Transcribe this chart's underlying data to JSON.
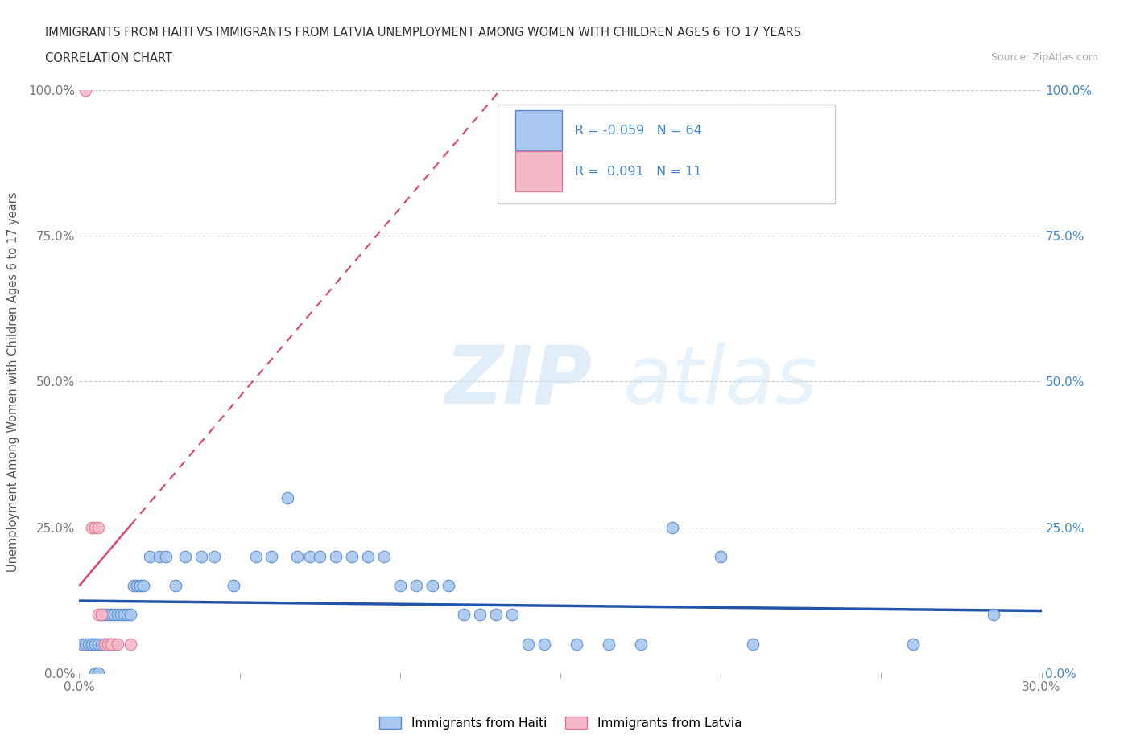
{
  "title_line1": "IMMIGRANTS FROM HAITI VS IMMIGRANTS FROM LATVIA UNEMPLOYMENT AMONG WOMEN WITH CHILDREN AGES 6 TO 17 YEARS",
  "title_line2": "CORRELATION CHART",
  "source_text": "Source: ZipAtlas.com",
  "xlabel": "Immigrants from Haiti",
  "xlabel2": "Immigrants from Latvia",
  "ylabel": "Unemployment Among Women with Children Ages 6 to 17 years",
  "xlim": [
    0.0,
    0.3
  ],
  "ylim": [
    0.0,
    1.0
  ],
  "xticks": [
    0.0,
    0.05,
    0.1,
    0.15,
    0.2,
    0.25,
    0.3
  ],
  "yticks": [
    0.0,
    0.25,
    0.5,
    0.75,
    1.0
  ],
  "haiti_color": "#a8c8f0",
  "haiti_edge_color": "#5588cc",
  "latvia_color": "#f5b8c8",
  "latvia_edge_color": "#dd7799",
  "haiti_R": -0.059,
  "haiti_N": 64,
  "latvia_R": 0.091,
  "latvia_N": 11,
  "trend_haiti_color": "#2255aa",
  "trend_latvia_color": "#dd4466",
  "background_color": "#ffffff",
  "haiti_scatter_x": [
    0.001,
    0.002,
    0.003,
    0.004,
    0.004,
    0.005,
    0.005,
    0.006,
    0.006,
    0.007,
    0.007,
    0.008,
    0.008,
    0.009,
    0.009,
    0.01,
    0.01,
    0.011,
    0.011,
    0.012,
    0.013,
    0.014,
    0.015,
    0.016,
    0.017,
    0.018,
    0.019,
    0.02,
    0.022,
    0.025,
    0.027,
    0.03,
    0.033,
    0.038,
    0.042,
    0.048,
    0.055,
    0.06,
    0.065,
    0.068,
    0.072,
    0.075,
    0.08,
    0.085,
    0.09,
    0.095,
    0.1,
    0.105,
    0.11,
    0.115,
    0.12,
    0.125,
    0.13,
    0.135,
    0.14,
    0.145,
    0.155,
    0.165,
    0.175,
    0.185,
    0.2,
    0.21,
    0.26,
    0.285
  ],
  "haiti_scatter_y": [
    0.05,
    0.05,
    0.05,
    0.05,
    0.05,
    0.05,
    0.0,
    0.05,
    0.0,
    0.05,
    0.1,
    0.05,
    0.1,
    0.05,
    0.1,
    0.05,
    0.1,
    0.05,
    0.1,
    0.1,
    0.1,
    0.1,
    0.1,
    0.1,
    0.15,
    0.15,
    0.15,
    0.15,
    0.2,
    0.2,
    0.2,
    0.15,
    0.2,
    0.2,
    0.2,
    0.15,
    0.2,
    0.2,
    0.3,
    0.2,
    0.2,
    0.2,
    0.2,
    0.2,
    0.2,
    0.2,
    0.15,
    0.15,
    0.15,
    0.15,
    0.1,
    0.1,
    0.1,
    0.1,
    0.05,
    0.05,
    0.05,
    0.05,
    0.05,
    0.25,
    0.2,
    0.05,
    0.05,
    0.1
  ],
  "latvia_scatter_x": [
    0.002,
    0.004,
    0.005,
    0.006,
    0.006,
    0.007,
    0.008,
    0.009,
    0.01,
    0.012,
    0.016
  ],
  "latvia_scatter_y": [
    1.0,
    0.25,
    0.25,
    0.25,
    0.1,
    0.1,
    0.05,
    0.05,
    0.05,
    0.05,
    0.05
  ]
}
